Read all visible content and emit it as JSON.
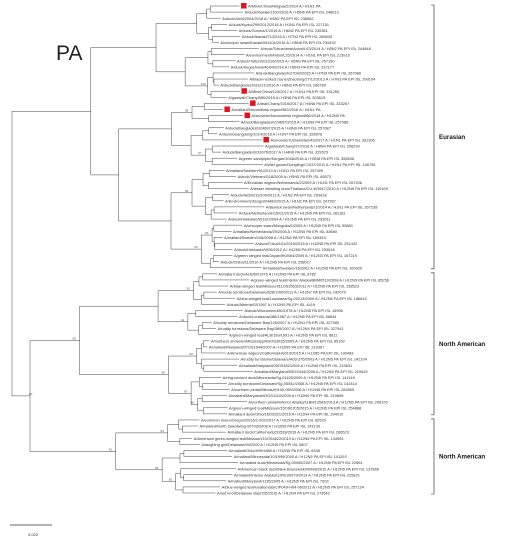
{
  "figure": {
    "panel_label": "PA",
    "scale_label": "0.020",
    "groups": [
      {
        "label": "Eurasian"
      },
      {
        "label": "North American"
      },
      {
        "label": "North American"
      }
    ],
    "tips": [
      {
        "label": "A/Mink/China/Ningxia/2/2014 A / H1N1 PA",
        "marker": true,
        "group": 0
      },
      {
        "label": "A/duck/Ibaraki/1100/2016 A / H5N6 PA EPI ISL 248013",
        "group": 0
      },
      {
        "label": "A/duck/Aichi/2004/2018 A / H5N2 PA EPI ISL 236582",
        "group": 0
      },
      {
        "label": "A/duck/Kyoto/299/2012/2016 A / H1N1 PA EPI ISL 227151",
        "group": 0
      },
      {
        "label": "A/duck/Gunma/1/2016 A / H6N2 PA EPI ISL 239381",
        "group": 0
      },
      {
        "label": "A/duck/Ibaraki/71/2016 A / H7N2 PA EPI ISL 265845",
        "group": 0
      },
      {
        "label": "A/whooper swan/Ibaraki/081104/2016 A / H5N6 PA EPI ISL 239432",
        "group": 0
      },
      {
        "label": "A/duck/Tokushima/Anhui/L63/2014 A / H5N2 PA EPI ISL 244848",
        "group": 0
      },
      {
        "label": "A/environment/Anhui/L25/2014 A / H1N1 PA EPI ISL 213916",
        "group": 0
      },
      {
        "label": "A/duck/Tottori/311016/2015 A / H5N9 PA EPI ISL 257150",
        "group": 0
      },
      {
        "label": "A/duck/Kagoshima/46/04/2014 A / H5N3 PA EPI ISL 237177",
        "group": 0
      },
      {
        "label": "A/duck/Bangladesh/27042/2015 A / H7N9 PA EPI ISL 267080",
        "group": 0
      },
      {
        "label": "A/black-necked crane/Zhaotong/27/12/2013 A / H7N3 PA EPI ISL 290104",
        "group": 0
      },
      {
        "label": "A/duck/Bangladesh/31221/2016 A / H6N2 PA EPI ISL 266789",
        "group": 0
      },
      {
        "label": "A/Mink/China/124/2017 A / H1N1 PA EPI ISL 331265",
        "marker": true,
        "group": 0
      },
      {
        "label": "A/gadwall/Chany/880/2018 A / H3N8 PA EPI ISL 303615",
        "group": 0
      },
      {
        "label": "A/teal/Chany/1016/2017 A / H4N6 PA EPI ISL 333267",
        "marker": true,
        "group": 0
      },
      {
        "label": "A/mallard/Novosibirsk region/962/2018 A / H1N1 PA",
        "marker": true,
        "group": 0
      },
      {
        "label": "A/shoveler/Novosibirsk region/866/2018 A / H12N5 PA",
        "marker": true,
        "group": 0
      },
      {
        "label": "A/duck/Bangladesh/24697/2015 A / H11N9 PA EPI ISL 257086",
        "group": 0
      },
      {
        "label": "A/duck/Bangladesh/24697/2015 A / H3N9 PA EPI ISL 257087",
        "group": 0
      },
      {
        "label": "A/duck/Guangdong/1014/2016 A / H1N7 PA EPI ISL 328976",
        "group": 0
      },
      {
        "label": "A/shoveler/Uzbekistan/43/2017 A / H1N1 PA EPI ISL 331306",
        "marker": true,
        "group": 0
      },
      {
        "label": "A/gadwall/Chany/97/2016 A / H8N4 PA EPI ISL 256239",
        "group": 0
      },
      {
        "label": "A/duck/Bangladesh/33676/2017 A / H4N6 PA EPI ISL 329573",
        "group": 0
      },
      {
        "label": "A/green sandpiper/Kurgan/1048/2018 A / H3N8 PA EPI ISL 355836",
        "group": 0
      },
      {
        "label": "A/wild goose/Dongting/C1037/2011 A / H1N1 PA EPI ISL 140706",
        "group": 0
      },
      {
        "label": "A/mallard/Sweden/91/2013 A / H1N1 PA EPI ISL 257409",
        "group": 0
      },
      {
        "label": "A/duck/Vietnam/G18/2009 A / H5N5 PA EPI ISL 89573",
        "group": 0
      },
      {
        "label": "A/Eurasian wigeon/Netherlands/2/2009 A / H1N1 PA EPI ISL 267306",
        "group": 0
      },
      {
        "label": "A/lesser whistling duck/Thailand/CU-W3947/2010 A / H12N5 PA EPI ISL 110109",
        "group": 0
      },
      {
        "label": "A/duck/Aichi/211/209/2011 A / H1N2 PA EPI ISL 253418",
        "group": 0
      },
      {
        "label": "A/Environment/Jiangxi/04489/2015 A / H1N2 PA EPI ISL 247287",
        "group": 0
      },
      {
        "label": "A/Bewick swan/Netherlands/1/2014 A / H1N1 PA EPI ISL 267238",
        "group": 0
      },
      {
        "label": "A/duck/Netherlands/15/01/2015 A / H12N5 PA EPI ISL 281181",
        "group": 0
      },
      {
        "label": "A/duck/Hokkaido/W132/2004 A / H12N5 PA EPI ISL 293511",
        "group": 0
      },
      {
        "label": "A/whooper swan/Mongolia/2/2005 A / H12N5 PA EPI ISL 95850",
        "group": 0
      },
      {
        "label": "A/mallard/Netherlands/29/2006 A / H12N5 PA EPI ISL 83660",
        "group": 0
      },
      {
        "label": "A/mallard/Sweden/108/2008 A / H12N5 PA EPI ISL 189393",
        "group": 0
      },
      {
        "label": "A/duck/Fukui/101/2015/2015 A / H12N5 PA EPI ISL 251442",
        "group": 0
      },
      {
        "label": "A/duck/Hokkaido/W26/2012 A / H12N5 PA EPI ISL 293518",
        "group": 0
      },
      {
        "label": "A/green winged teal/Japan/9K0064/2009 A / H12N3 PA EPI ISL 167219",
        "group": 0
      },
      {
        "label": "A/duck/Chiba/11/2010 A / H12N5 PA EPI ISL 258017",
        "group": 0
      },
      {
        "label": "A/mallard/Sweden/16/2002 A / H12N5 PA EPI ISL 100920",
        "group": 0
      },
      {
        "label": "A/mallard duck/ALB/60/1976 A / H12N5 PA EPI ISL 8782",
        "group": 1
      },
      {
        "label": "A/green-winged teal/Interior Alaska/8BM0519/2008 A / H12N5 PA EPI ISL 85256",
        "group": 1
      },
      {
        "label": "A/blue-winged teal/Missouri/11OS2563/2011 A / H12N5 PA EPI ISL 158523",
        "group": 1
      },
      {
        "label": "A/ruddy turnstone/Delaware/628/1990/2011 A / H12N7 PA EPI ISL 142079",
        "group": 1
      },
      {
        "label": "A/blue-winged teal/Louisiana/Sg-00213/2009 A / H12N5 PA EPI ISL 186615",
        "group": 1
      },
      {
        "label": "A/duck/Alberta/G01997 A / H12N5 PA EPI ISL 4419",
        "group": 1
      },
      {
        "label": "A/duck/Wisconsin/480/1978 A / H12N5 PA EPI ISL 16998",
        "group": 1
      },
      {
        "label": "A/duck/Louisiana/188/1987 A / H12N5 PA EPI ISL 68644",
        "group": 1
      },
      {
        "label": "A/ruddy turnstone/Delaware Bay/126/2007 A / H12N1 PA EPI ISL 327580",
        "group": 1
      },
      {
        "label": "A/ruddy turnstone/Delaware Bay/389/2007 A / H12N4 PA EPI ISL 327541",
        "group": 1
      },
      {
        "label": "A/green-winged teal/ALB/199/1991 A / H12N5 PA EPI ISL 8811",
        "group": 1
      },
      {
        "label": "A/northern shoveler/Mississippi/09OS3025/2009 A / H12N5 PA EPI ISL 85169",
        "group": 1
      },
      {
        "label": "A/mallard/Maryland/07OS1544/2007 A / H12N5 PA EPI ISL 210367",
        "group": 1
      },
      {
        "label": "A/American wigeon/California/HS010/2015 A / H12N5 PA EPI ISL 190483",
        "group": 1
      },
      {
        "label": "A/ruddy turnstone/Delaware/A03-376/2003 A / H12N5 PA EPI ISL 142104",
        "group": 1
      },
      {
        "label": "A/mallard/Maryland/09OS482/2006 A / H12N5 PA EPI ISL 219631",
        "group": 1
      },
      {
        "label": "A/mallard/Maryland/09OS444/2006 A / H12N5 PA EPI ISL 219629",
        "group": 1
      },
      {
        "label": "A/ring-necked duck/Minnesota/Sg-01195/2009 A / H12N5 PA EPI ISL 141149",
        "group": 1
      },
      {
        "label": "A/ruddy turnstone/Delaware/Sg-00542/2008 A / H12N5 PA EPI ISL 142410",
        "group": 1
      },
      {
        "label": "A/northern pintail/Illinois/HI100-069/2006 A / H12N5 PA EPI ISL 284565",
        "group": 1
      },
      {
        "label": "A/mallard/Maryland/09OS1110/2009 A / H12N5 PA EPI ISL 219698",
        "group": 1
      },
      {
        "label": "A/northern pintail/Interior Alaska/11BM13543/2013 A / H12N5 PA EPI ISL 296126",
        "group": 1
      },
      {
        "label": "A/green-winged teal/Missouri/15OS6705/2015 A / H12N5 PA EPI ISL 254888",
        "group": 1
      },
      {
        "label": "A/mallard duck/Ohio/16OS921/2016 A / H12N4 PA EPI ISL 294010",
        "group": 1
      },
      {
        "label": "A/common murre/Oregon/2016/1-002/2017 A / H12N5 PA EPI ISL 82529",
        "group": 2
      },
      {
        "label": "A/mallard/North Dakota/Sg-00703/2008 A / H12N5 PA EPI ISL 141139",
        "group": 2
      },
      {
        "label": "A/mallard duck/California/UCD539/2016 A / H12N5 PA EPI ISL 266523",
        "group": 2
      },
      {
        "label": "A/American green-winged teal/Missouri/10OS4622/2010 A / H12N5 PA EPI ISL 134993",
        "group": 2
      },
      {
        "label": "A/laughing gull/Delaware/94/2000 A / H12N5 PA EPI ISL 5807",
        "group": 2
      },
      {
        "label": "A/mallard/Ohio/499/1988 A / H12N5 PA EPI ISL 6338",
        "group": 2
      },
      {
        "label": "A/mallard/Minnesota/10/1999/2000 A / H12N5 PA EPI ISL 141293",
        "group": 2
      },
      {
        "label": "A/mallard duck/Minnesota/Sg-00055/2007 A / H12N5 PA EPI ISL 22651",
        "group": 2
      },
      {
        "label": "A/American black duck/New Brunswick/00998/2010 A / H12N5 PA EPI ISL 137866",
        "group": 2
      },
      {
        "label": "A/mallard/Interior Alaska/12ML00079/2013 A / H12N5 PA EPI ISL 225821",
        "group": 2
      },
      {
        "label": "A/mallard/Maryland/1135/2005 A / H12N5 PA EPI ISL 7003",
        "group": 2
      },
      {
        "label": "A/blue-winged teal/Guatemala/CIP049-H04-06/2011 A / H12N5 PA EPI ISL 257124",
        "group": 2
      },
      {
        "label": "A/red knot/Delaware Bay/155/2016 A / H12N4 PA EPI ISL 273542",
        "group": 2
      }
    ],
    "support_values": [
      "100",
      "98",
      "97",
      "95",
      "94",
      "93",
      "92",
      "91",
      "90",
      "88",
      "87",
      "86",
      "85",
      "84",
      "83",
      "82",
      "81",
      "80",
      "79",
      "78",
      "77",
      "76",
      "75",
      "74",
      "73",
      "72",
      "71",
      "70",
      "69",
      "68",
      "67",
      "66"
    ]
  }
}
